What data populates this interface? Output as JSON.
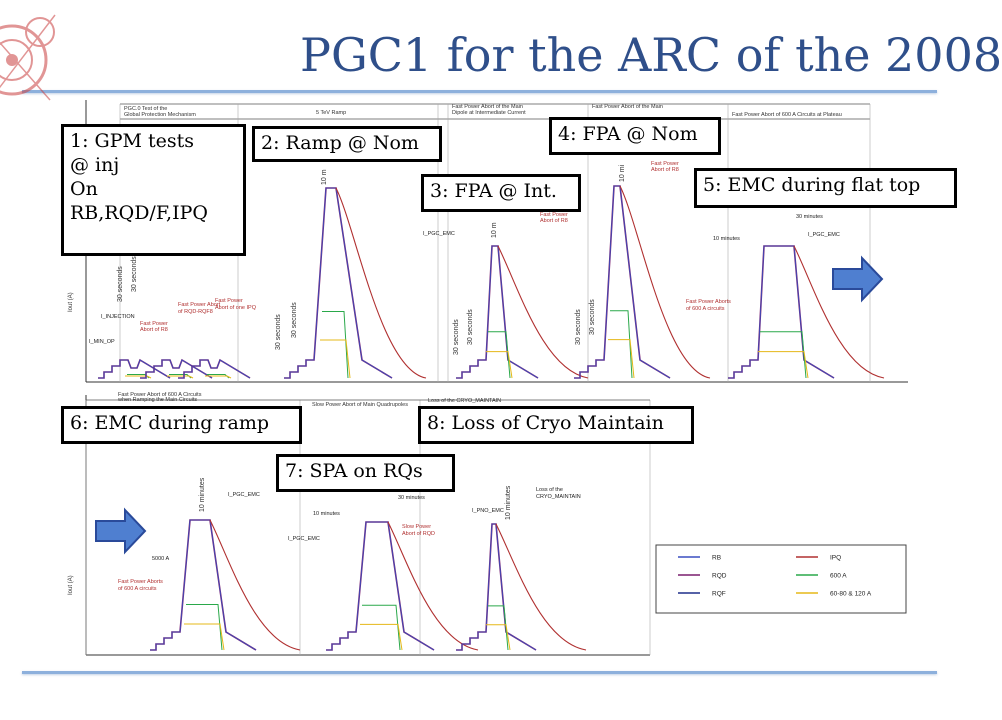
{
  "title": "PGC1 for the ARC of the 2008",
  "colors": {
    "title": "#2f4f8a",
    "rule": "#8db0dc",
    "RB": "#3a4fc0",
    "IPQ": "#b03030",
    "RQD": "#7a1e6e",
    "A600": "#2aa84a",
    "RQF": "#1f2f8a",
    "A60_120": "#e5b818",
    "arrow": "#4f7fd0"
  },
  "callouts": {
    "box1": {
      "lines": [
        "1: GPM tests",
        "@ inj",
        "On",
        "RB,RQD/F,IPQ"
      ]
    },
    "box2": "2: Ramp @ Nom",
    "box3": "3: FPA @ Int.",
    "box4": "4: FPA @ Nom",
    "box5": "5: EMC during flat top",
    "box6": "6: EMC during ramp",
    "box7": "7: SPA on RQs",
    "box8": "8: Loss of Cryo Maintain"
  },
  "top_panel": {
    "ylabel": "Iout (A)",
    "headers": [
      "PGC.0 Test of the",
      "Global Protection Mechanism",
      "5 TeV Ramp",
      "Fast Power Abort of the Main",
      "Dipole at Intermediate Current",
      "Fast Power Abort of the Main",
      "Fast Power Abort of 600 A Circuits at Plateau"
    ],
    "annotations": [
      "Fast Power Abort",
      "of RQD-RQF8",
      "Fast Power",
      "Abort of R8",
      "Fast Power",
      "Abort of one IPQ",
      "I_INJECTION",
      "I_MIN_OP",
      "I_PGC_EMC",
      "Fast Power",
      "Abort of R8",
      "Fast Power",
      "Abort of R8",
      "30 minutes",
      "10 minutes",
      "I_PGC_EMC",
      "Fast Power Aborts",
      "of 600 A circuits"
    ],
    "durations": [
      "30 seconds",
      "30 seconds",
      "30 seconds",
      "30 seconds",
      "10 m",
      "30 seconds",
      "30 seconds",
      "10 m",
      "30 seconds",
      "30 seconds",
      "10 mi"
    ]
  },
  "bottom_panel": {
    "ylabel": "Iout (A)",
    "headers": [
      "Fast Power Abort of 600 A Circuits",
      "when Ramping the Main Circuits",
      "Slow Power Abort of Main Quadrupoles",
      "Loss of the CRYO_MAINTAIN"
    ],
    "annotations": [
      "I_PGC_EMC",
      "5000 A",
      "Fast Power Aborts",
      "of 600 A circuits",
      "30 minutes",
      "10 minutes",
      "I_PGC_EMC",
      "Slow Power",
      "Abort of RQD",
      "I_PNO_EMC",
      "Loss of the",
      "CRYO_MAINTAIN"
    ],
    "durations": [
      "10 minutes",
      "10 minutes"
    ]
  },
  "legend": {
    "entries": [
      {
        "label": "RB",
        "color": "#3a4fc0"
      },
      {
        "label": "IPQ",
        "color": "#b03030"
      },
      {
        "label": "RQD",
        "color": "#7a1e6e"
      },
      {
        "label": "600 A",
        "color": "#2aa84a"
      },
      {
        "label": "RQF",
        "color": "#1f2f8a"
      },
      {
        "label": "60-80 & 120 A",
        "color": "#e5b818"
      }
    ]
  },
  "icons": [
    "cern-logo-icon",
    "arrow-right-icon",
    "arrow-right-icon"
  ]
}
